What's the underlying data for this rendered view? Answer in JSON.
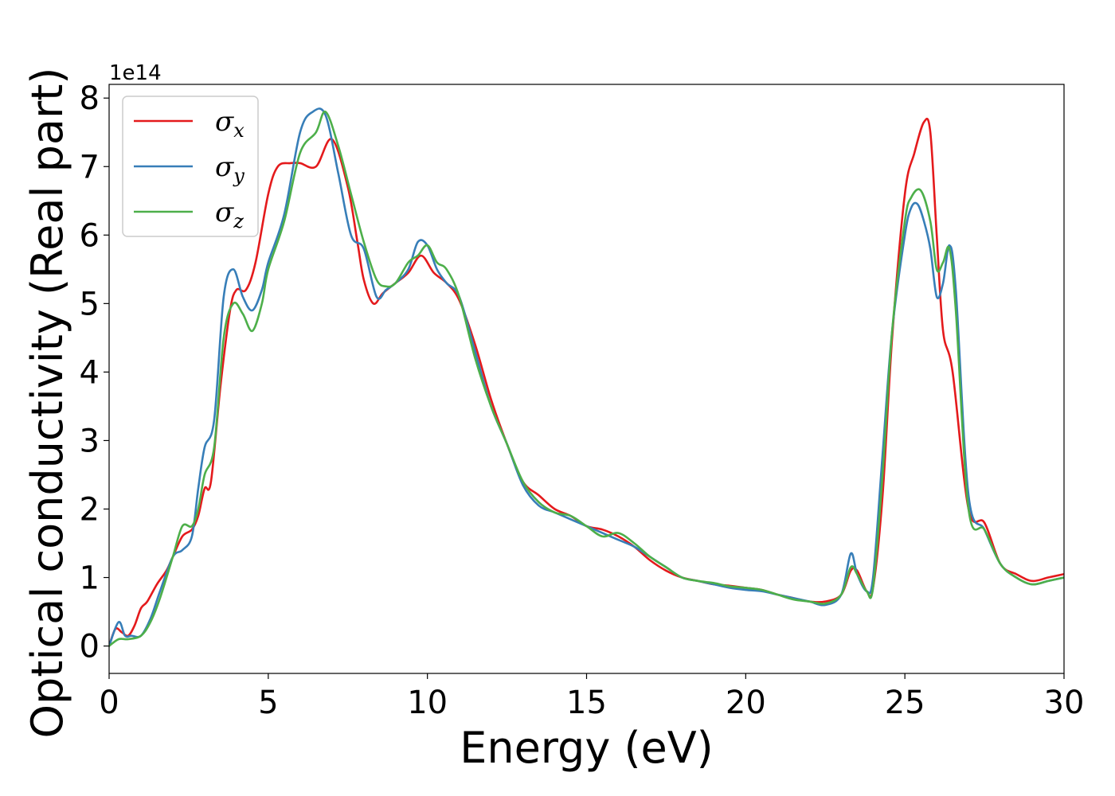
{
  "chart_data": {
    "type": "line",
    "xlabel": "Energy (eV)",
    "ylabel": "Optical conductivity (Real part)",
    "y_offset_label": "1e14",
    "xlim": [
      0,
      30
    ],
    "ylim": [
      -0.4,
      8.2
    ],
    "xticks": [
      0,
      5,
      10,
      15,
      20,
      25,
      30
    ],
    "yticks": [
      0,
      1,
      2,
      3,
      4,
      5,
      6,
      7,
      8
    ],
    "grid": false,
    "legend_position": "top-left",
    "series": [
      {
        "name": "σx",
        "legend_main": "σ",
        "legend_sub": "x",
        "color": "#e41a1c",
        "x": [
          0,
          0.2,
          0.4,
          0.6,
          0.8,
          1.0,
          1.2,
          1.5,
          1.8,
          2.0,
          2.3,
          2.6,
          2.8,
          3.0,
          3.2,
          3.5,
          3.8,
          4.0,
          4.3,
          4.6,
          5.0,
          5.3,
          5.7,
          6.0,
          6.5,
          7.0,
          7.5,
          7.8,
          8.0,
          8.3,
          8.6,
          9.0,
          9.4,
          9.8,
          10.2,
          10.6,
          11.0,
          11.5,
          12.0,
          12.5,
          13.0,
          13.5,
          14.0,
          14.5,
          15.0,
          15.5,
          16.0,
          16.5,
          17.0,
          17.5,
          18.0,
          18.5,
          19.0,
          19.5,
          20.0,
          20.5,
          21.0,
          21.5,
          22.0,
          22.5,
          23.0,
          23.3,
          23.5,
          23.8,
          24.0,
          24.3,
          24.6,
          25.0,
          25.3,
          25.6,
          25.8,
          26.0,
          26.2,
          26.5,
          27.0,
          27.5,
          28.0,
          28.5,
          29.0,
          29.5,
          30.0
        ],
        "y": [
          0.0,
          0.25,
          0.2,
          0.15,
          0.3,
          0.55,
          0.65,
          0.9,
          1.1,
          1.3,
          1.6,
          1.7,
          1.9,
          2.3,
          2.4,
          3.8,
          4.9,
          5.2,
          5.2,
          5.6,
          6.6,
          7.0,
          7.05,
          7.05,
          7.0,
          7.4,
          6.7,
          5.9,
          5.35,
          5.0,
          5.15,
          5.3,
          5.45,
          5.7,
          5.45,
          5.3,
          5.05,
          4.4,
          3.6,
          2.95,
          2.4,
          2.2,
          2.0,
          1.9,
          1.75,
          1.7,
          1.6,
          1.45,
          1.25,
          1.1,
          1.0,
          0.95,
          0.9,
          0.88,
          0.85,
          0.82,
          0.75,
          0.7,
          0.65,
          0.65,
          0.75,
          1.1,
          1.1,
          0.8,
          0.85,
          2.2,
          4.5,
          6.6,
          7.2,
          7.65,
          7.5,
          6.0,
          4.6,
          4.0,
          2.0,
          1.8,
          1.2,
          1.05,
          0.95,
          1.0,
          1.05
        ]
      },
      {
        "name": "σy",
        "legend_main": "σ",
        "legend_sub": "y",
        "color": "#377eb8",
        "x": [
          0,
          0.3,
          0.5,
          0.7,
          1.0,
          1.3,
          1.6,
          2.0,
          2.3,
          2.6,
          2.8,
          3.0,
          3.3,
          3.6,
          3.9,
          4.2,
          4.5,
          4.8,
          5.0,
          5.5,
          6.0,
          6.4,
          6.8,
          7.2,
          7.6,
          8.0,
          8.4,
          8.7,
          9.0,
          9.4,
          9.7,
          10.0,
          10.3,
          10.6,
          11.0,
          11.5,
          12.0,
          12.5,
          13.0,
          13.5,
          14.0,
          14.5,
          15.0,
          15.5,
          16.0,
          16.5,
          17.0,
          17.5,
          18.0,
          18.5,
          19.0,
          19.5,
          20.0,
          20.5,
          21.0,
          21.5,
          22.0,
          22.5,
          23.0,
          23.3,
          23.5,
          23.8,
          24.0,
          24.3,
          24.6,
          25.0,
          25.2,
          25.4,
          25.6,
          25.8,
          26.0,
          26.2,
          26.4,
          26.6,
          27.0,
          27.5,
          28.0,
          28.5,
          29.0,
          29.5,
          30.0
        ],
        "y": [
          0.0,
          0.35,
          0.15,
          0.15,
          0.15,
          0.4,
          0.8,
          1.3,
          1.4,
          1.6,
          2.3,
          2.9,
          3.3,
          5.1,
          5.5,
          5.1,
          4.9,
          5.2,
          5.6,
          6.3,
          7.5,
          7.8,
          7.75,
          6.9,
          6.0,
          5.8,
          5.1,
          5.2,
          5.3,
          5.5,
          5.9,
          5.85,
          5.5,
          5.3,
          5.1,
          4.3,
          3.5,
          2.95,
          2.35,
          2.05,
          1.95,
          1.85,
          1.75,
          1.65,
          1.55,
          1.45,
          1.3,
          1.15,
          1.0,
          0.95,
          0.9,
          0.85,
          0.82,
          0.8,
          0.75,
          0.7,
          0.65,
          0.6,
          0.75,
          1.35,
          1.05,
          0.8,
          1.0,
          2.8,
          4.6,
          6.0,
          6.4,
          6.45,
          6.2,
          5.8,
          5.1,
          5.3,
          5.85,
          5.2,
          2.2,
          1.7,
          1.2,
          1.0,
          0.9,
          0.95,
          1.0
        ]
      },
      {
        "name": "σz",
        "legend_main": "σ",
        "legend_sub": "z",
        "color": "#4daf4a",
        "x": [
          0,
          0.3,
          0.6,
          1.0,
          1.3,
          1.6,
          2.0,
          2.3,
          2.6,
          2.8,
          3.0,
          3.3,
          3.6,
          3.9,
          4.2,
          4.5,
          4.8,
          5.0,
          5.5,
          6.0,
          6.5,
          6.8,
          7.2,
          7.6,
          8.0,
          8.4,
          8.7,
          9.0,
          9.4,
          9.7,
          10.0,
          10.3,
          10.6,
          11.0,
          11.5,
          12.0,
          12.5,
          13.0,
          13.5,
          14.0,
          14.5,
          15.0,
          15.5,
          16.0,
          16.5,
          17.0,
          17.5,
          18.0,
          18.5,
          19.0,
          19.5,
          20.0,
          20.5,
          21.0,
          21.5,
          22.0,
          22.5,
          23.0,
          23.3,
          23.5,
          23.8,
          24.0,
          24.3,
          24.6,
          25.0,
          25.2,
          25.5,
          25.8,
          26.0,
          26.2,
          26.4,
          26.6,
          27.0,
          27.5,
          28.0,
          28.5,
          29.0,
          29.5,
          30.0
        ],
        "y": [
          0.0,
          0.1,
          0.1,
          0.15,
          0.35,
          0.7,
          1.3,
          1.75,
          1.75,
          2.0,
          2.5,
          2.9,
          4.5,
          5.0,
          4.85,
          4.6,
          5.0,
          5.5,
          6.2,
          7.2,
          7.5,
          7.8,
          7.3,
          6.6,
          5.9,
          5.35,
          5.25,
          5.3,
          5.6,
          5.7,
          5.85,
          5.6,
          5.5,
          5.1,
          4.2,
          3.5,
          2.95,
          2.4,
          2.1,
          1.95,
          1.9,
          1.75,
          1.6,
          1.65,
          1.5,
          1.3,
          1.15,
          1.0,
          0.95,
          0.92,
          0.87,
          0.85,
          0.82,
          0.75,
          0.68,
          0.65,
          0.62,
          0.75,
          1.15,
          1.05,
          0.8,
          0.85,
          2.5,
          4.6,
          6.2,
          6.55,
          6.65,
          6.2,
          5.5,
          5.6,
          5.8,
          4.9,
          2.0,
          1.7,
          1.2,
          1.0,
          0.9,
          0.95,
          1.0
        ]
      }
    ]
  }
}
